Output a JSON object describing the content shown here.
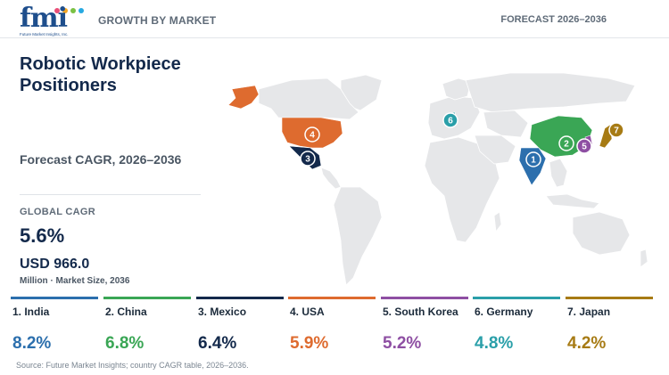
{
  "header": {
    "logo_text": "fmi",
    "logo_sub": "Future Market Insights, Inc.",
    "left_label": "GROWTH BY MARKET",
    "right_label": "FORECAST 2026–2036"
  },
  "title": "Robotic Workpiece Positioners",
  "subtitle": "Forecast CAGR, 2026–2036",
  "global": {
    "label": "GLOBAL CAGR",
    "value": "5.6%",
    "market_value": "USD 966.0",
    "market_label": "Million · Market Size, 2036"
  },
  "countries": [
    {
      "rank": "1",
      "label": "1. India",
      "cagr": "8.2%",
      "color": "#2c6fad"
    },
    {
      "rank": "2",
      "label": "2. China",
      "cagr": "6.8%",
      "color": "#3aa655"
    },
    {
      "rank": "3",
      "label": "3. Mexico",
      "cagr": "6.4%",
      "color": "#13294b"
    },
    {
      "rank": "4",
      "label": "4. USA",
      "cagr": "5.9%",
      "color": "#de6b2f"
    },
    {
      "rank": "5",
      "label": "5. South Korea",
      "cagr": "5.2%",
      "color": "#8e4fa3"
    },
    {
      "rank": "6",
      "label": "6. Germany",
      "cagr": "4.8%",
      "color": "#2a9fa9"
    },
    {
      "rank": "7",
      "label": "7. Japan",
      "cagr": "4.2%",
      "color": "#a77b14"
    }
  ],
  "map_colors": {
    "land": "#e6e7e9",
    "border": "#ffffff"
  },
  "source": "Source: Future Market Insights; country CAGR table, 2026–2036."
}
